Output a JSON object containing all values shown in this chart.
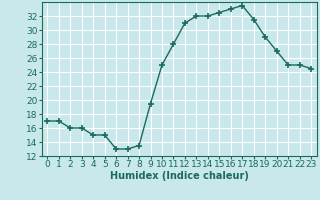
{
  "x": [
    0,
    1,
    2,
    3,
    4,
    5,
    6,
    7,
    8,
    9,
    10,
    11,
    12,
    13,
    14,
    15,
    16,
    17,
    18,
    19,
    20,
    21,
    22,
    23
  ],
  "y": [
    17,
    17,
    16,
    16,
    15,
    15,
    13,
    13,
    13.5,
    19.5,
    25,
    28,
    31,
    32,
    32,
    32.5,
    33,
    33.5,
    31.5,
    29,
    27,
    25,
    25,
    24.5
  ],
  "line_color": "#1a6b5a",
  "marker": "+",
  "bg_color": "#c8e8ec",
  "grid_color": "#b0d8dc",
  "xlabel": "Humidex (Indice chaleur)",
  "xlim": [
    -0.5,
    23.5
  ],
  "ylim": [
    12,
    34
  ],
  "yticks": [
    12,
    14,
    16,
    18,
    20,
    22,
    24,
    26,
    28,
    30,
    32
  ],
  "xticks": [
    0,
    1,
    2,
    3,
    4,
    5,
    6,
    7,
    8,
    9,
    10,
    11,
    12,
    13,
    14,
    15,
    16,
    17,
    18,
    19,
    20,
    21,
    22,
    23
  ],
  "xlabel_fontsize": 7,
  "tick_fontsize": 6.5
}
